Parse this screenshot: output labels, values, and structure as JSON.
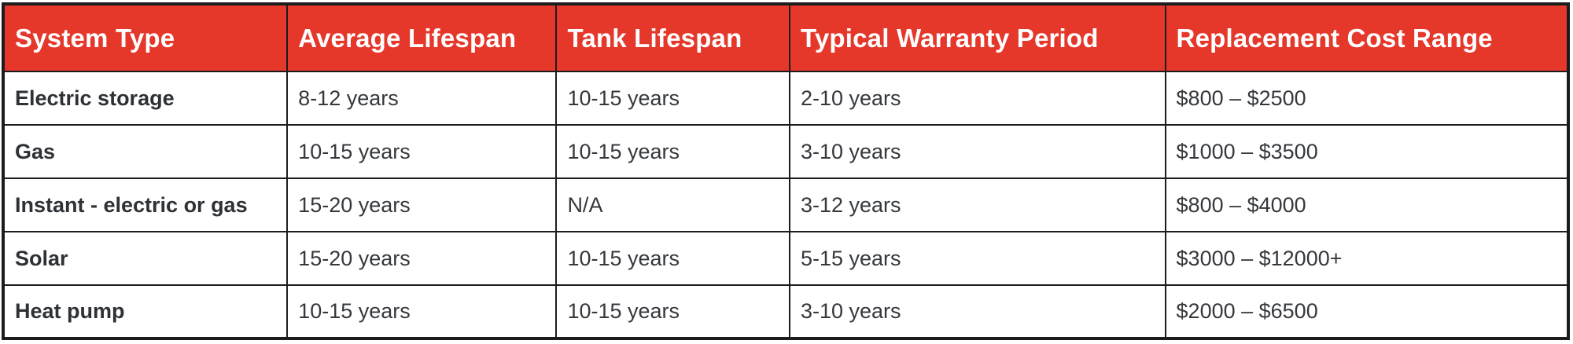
{
  "colors": {
    "header_bg": "#E5382B",
    "header_text": "#FFFFFF",
    "body_text": "#35383C",
    "border": "#1C1C1C",
    "row_bg": "#FFFFFF"
  },
  "table": {
    "columns": [
      {
        "label": "System Type"
      },
      {
        "label": "Average Lifespan"
      },
      {
        "label": "Tank Lifespan"
      },
      {
        "label": "Typical Warranty Period"
      },
      {
        "label": "Replacement Cost Range"
      }
    ],
    "rows": [
      {
        "cells": [
          "Electric storage",
          "8-12 years",
          "10-15 years",
          "2-10 years",
          "$800 – $2500"
        ]
      },
      {
        "cells": [
          "Gas",
          "10-15 years",
          "10-15 years",
          "3-10 years",
          "$1000 – $3500"
        ]
      },
      {
        "cells": [
          "Instant - electric or gas",
          "15-20 years",
          "N/A",
          "3-12 years",
          "$800 – $4000"
        ]
      },
      {
        "cells": [
          "Solar",
          "15-20 years",
          "10-15 years",
          "5-15 years",
          "$3000 – $12000+"
        ]
      },
      {
        "cells": [
          "Heat pump",
          "10-15 years",
          "10-15 years",
          "3-10 years",
          "$2000 – $6500"
        ]
      }
    ]
  }
}
